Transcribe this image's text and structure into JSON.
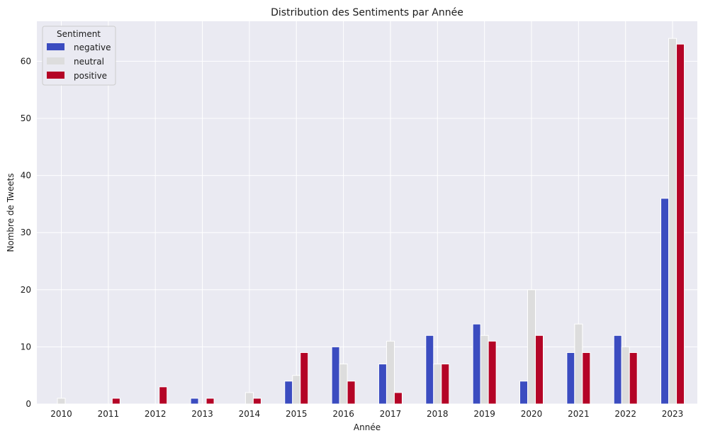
{
  "chart_data": {
    "type": "bar",
    "title": "Distribution des Sentiments par Année",
    "xlabel": "Année",
    "ylabel": "Nombre de Tweets",
    "categories": [
      "2010",
      "2011",
      "2012",
      "2013",
      "2014",
      "2015",
      "2016",
      "2017",
      "2018",
      "2019",
      "2020",
      "2021",
      "2022",
      "2023"
    ],
    "series": [
      {
        "name": "negative",
        "color": "#3b4cc0",
        "values": [
          0,
          0,
          0,
          1,
          0,
          4,
          10,
          7,
          12,
          14,
          4,
          9,
          12,
          36
        ]
      },
      {
        "name": "neutral",
        "color": "#dddddd",
        "values": [
          1,
          0,
          0,
          0,
          2,
          5,
          7,
          11,
          7,
          12,
          20,
          14,
          10,
          64
        ]
      },
      {
        "name": "positive",
        "color": "#b40426",
        "values": [
          0,
          1,
          3,
          1,
          1,
          9,
          4,
          2,
          7,
          11,
          12,
          9,
          9,
          63
        ]
      }
    ],
    "ylim": [
      0,
      67
    ],
    "yticks": [
      0,
      10,
      20,
      30,
      40,
      50,
      60
    ],
    "grid": true,
    "legend": {
      "title": "Sentiment",
      "placement": "top-left"
    },
    "background": "#eaeaf2"
  }
}
